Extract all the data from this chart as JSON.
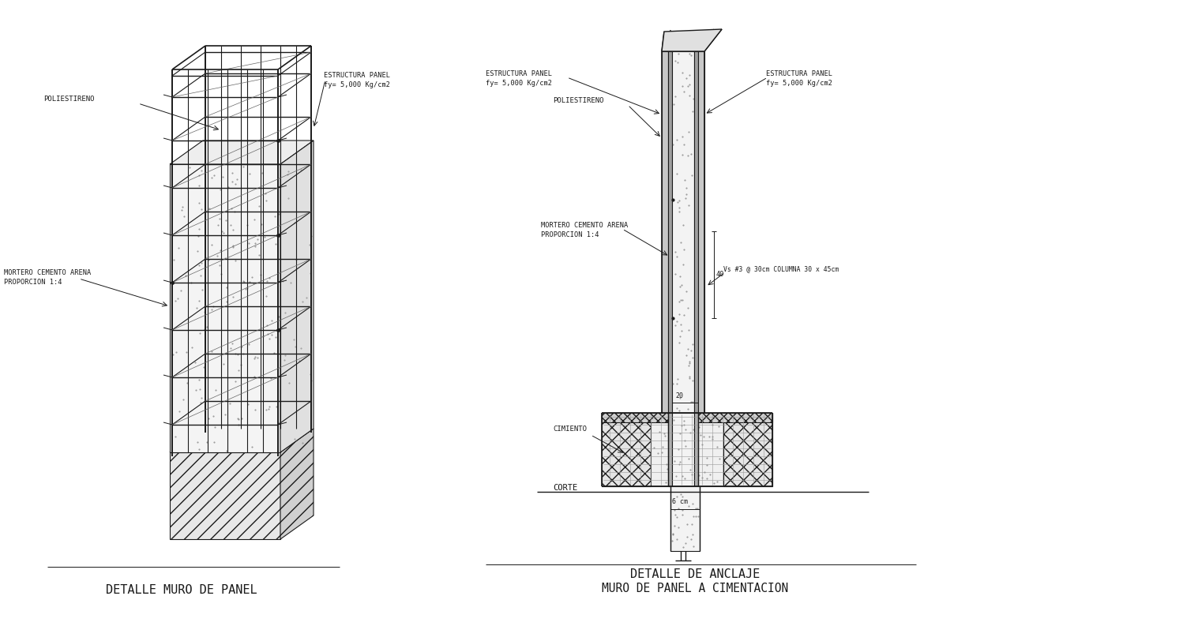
{
  "bg_color": "#ffffff",
  "line_color": "#1a1a1a",
  "title1": "DETALLE MURO DE PANEL",
  "title2": "DETALLE DE ANCLAJE",
  "title3": "MURO DE PANEL A CIMENTACION",
  "label_poliestireno": "POLIESTIRENO",
  "label_mortero1": "MORTERO CEMENTO ARENA",
  "label_mortero2": "PROPORCION 1:4",
  "label_estructura1": "ESTRUCTURA PANEL",
  "label_estructura2": "fy= 5,000 Kg/cm2",
  "label_columna": "Vs #3 @ 30cm COLUMNA 30 x 45cm",
  "label_cimiento": "CIMIENTO",
  "label_corte": "CORTE",
  "label_40": "40",
  "label_20": "20",
  "label_6cm": "6 cm"
}
